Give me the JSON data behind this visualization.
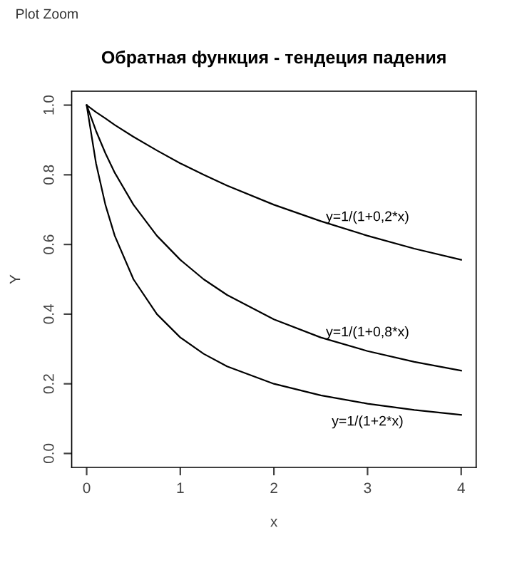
{
  "chart_data": {
    "type": "line",
    "title": "Обратная функция - тендеция падения",
    "xlabel": "x",
    "ylabel": "Y",
    "x": [
      0,
      0.1,
      0.2,
      0.3,
      0.5,
      0.75,
      1,
      1.25,
      1.5,
      2,
      2.5,
      3,
      3.5,
      4
    ],
    "series": [
      {
        "name": "y=1/(1+0,2*x)",
        "color": "#000000",
        "values": [
          1,
          0.98,
          0.962,
          0.943,
          0.909,
          0.87,
          0.833,
          0.8,
          0.769,
          0.714,
          0.667,
          0.625,
          0.588,
          0.556
        ]
      },
      {
        "name": "y=1/(1+0,8*x)",
        "color": "#000000",
        "values": [
          1,
          0.926,
          0.862,
          0.806,
          0.714,
          0.625,
          0.556,
          0.5,
          0.455,
          0.385,
          0.333,
          0.294,
          0.263,
          0.238
        ]
      },
      {
        "name": "y=1/(1+2*x)",
        "color": "#000000",
        "values": [
          1,
          0.833,
          0.714,
          0.625,
          0.5,
          0.4,
          0.333,
          0.286,
          0.25,
          0.2,
          0.167,
          0.143,
          0.125,
          0.111
        ]
      }
    ],
    "xlim": [
      -0.16,
      4.16
    ],
    "ylim": [
      -0.04,
      1.04
    ],
    "xticks": [
      0,
      1,
      2,
      3,
      4
    ],
    "yticks": [
      {
        "value": 0,
        "label": "0.0"
      },
      0.2,
      0.4,
      0.6,
      0.8,
      {
        "value": 1,
        "label": "1.0"
      }
    ],
    "grid": false,
    "legend": false,
    "marker": "none",
    "line_style": "solid",
    "annotations": [
      "Plot Zoom"
    ]
  }
}
